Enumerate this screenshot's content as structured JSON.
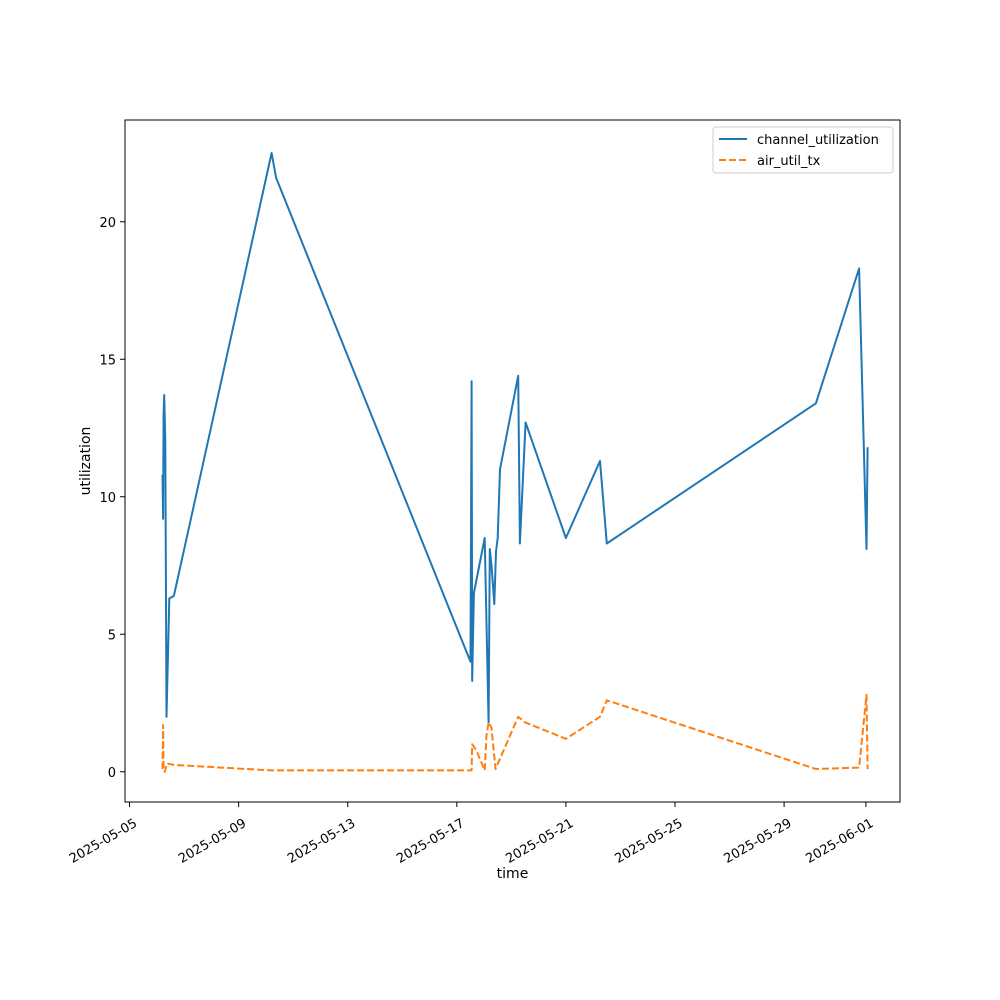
{
  "chart_data": {
    "type": "line",
    "xlabel": "time",
    "ylabel": "utilization",
    "xlim": [
      "2025-05-04T20:00",
      "2025-06-02T06:00"
    ],
    "ylim": [
      -1.1,
      23.7
    ],
    "x_ticks": [
      "2025-05-05",
      "2025-05-09",
      "2025-05-13",
      "2025-05-17",
      "2025-05-21",
      "2025-05-25",
      "2025-05-29",
      "2025-06-01"
    ],
    "y_ticks": [
      0,
      5,
      10,
      15,
      20
    ],
    "grid": false,
    "legend_position": "top-right",
    "series": [
      {
        "name": "channel_utilization",
        "color": "#1f77b4",
        "dash": "solid",
        "x": [
          "2025-05-06T05:00",
          "2025-05-06T05:30",
          "2025-05-06T06:00",
          "2025-05-06T06:30",
          "2025-05-06T07:30",
          "2025-05-06T08:30",
          "2025-05-06T11:00",
          "2025-05-06T15:00",
          "2025-05-10T05:00",
          "2025-05-10T09:00",
          "2025-05-17T12:00",
          "2025-05-17T13:00",
          "2025-05-17T13:30",
          "2025-05-17T14:00",
          "2025-05-17T15:00",
          "2025-05-18T00:30",
          "2025-05-18T04:00",
          "2025-05-18T05:00",
          "2025-05-18T06:30",
          "2025-05-18T09:00",
          "2025-05-18T10:30",
          "2025-05-18T12:00",
          "2025-05-18T14:00",
          "2025-05-19T06:00",
          "2025-05-19T07:30",
          "2025-05-19T12:30",
          "2025-05-21T00:00",
          "2025-05-22T06:00",
          "2025-05-22T12:00",
          "2025-05-30T04:00",
          "2025-05-31T18:00",
          "2025-06-01T00:30",
          "2025-06-01T01:30"
        ],
        "y": [
          10.8,
          9.2,
          13.0,
          13.7,
          12.0,
          2.0,
          6.3,
          6.4,
          22.5,
          21.6,
          4.0,
          14.2,
          3.3,
          4.3,
          6.5,
          8.5,
          1.8,
          8.1,
          7.5,
          6.1,
          8.0,
          8.5,
          11.0,
          14.4,
          8.3,
          12.7,
          8.5,
          11.3,
          8.3,
          13.4,
          18.3,
          8.1,
          11.8
        ]
      },
      {
        "name": "air_util_tx",
        "color": "#ff7f0e",
        "dash": "dashed",
        "x": [
          "2025-05-06T05:00",
          "2025-05-06T05:30",
          "2025-05-06T06:00",
          "2025-05-06T07:00",
          "2025-05-06T09:00",
          "2025-05-06T15:00",
          "2025-05-10T05:00",
          "2025-05-17T12:00",
          "2025-05-17T13:00",
          "2025-05-17T13:30",
          "2025-05-17T17:00",
          "2025-05-18T00:30",
          "2025-05-18T02:00",
          "2025-05-18T04:00",
          "2025-05-18T06:30",
          "2025-05-18T10:00",
          "2025-05-19T06:00",
          "2025-05-19T12:00",
          "2025-05-21T00:00",
          "2025-05-22T06:00",
          "2025-05-22T12:00",
          "2025-05-30T04:00",
          "2025-05-31T18:00",
          "2025-06-01T00:30",
          "2025-06-01T01:30"
        ],
        "y": [
          0.1,
          1.7,
          0.1,
          0.0,
          0.3,
          0.25,
          0.05,
          0.05,
          0.05,
          1.0,
          0.8,
          0.05,
          1.3,
          1.8,
          1.6,
          0.1,
          2.0,
          1.8,
          1.2,
          2.0,
          2.6,
          0.1,
          0.15,
          2.8,
          0.1
        ]
      }
    ]
  }
}
